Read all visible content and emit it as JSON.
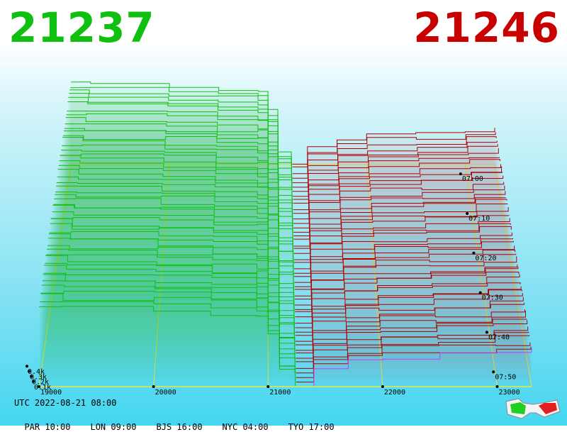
{
  "header": {
    "bid_price": "21237",
    "ask_price": "21246"
  },
  "footer": {
    "utc": "UTC 2022-08-21 08:00",
    "cities": [
      "PAR 10:00",
      "LON 09:00",
      "BJS 16:00",
      "NYC 04:00",
      "TYO 17:00"
    ]
  },
  "chart_data": {
    "type": "area",
    "title": "",
    "x_ticks": [
      "19000",
      "20000",
      "21000",
      "22000",
      "23000"
    ],
    "x_range": [
      19000,
      23300
    ],
    "y_ticks": [
      "0.1k",
      "0.2k",
      "0.3k",
      "0.4k"
    ],
    "time_ticks": [
      "07:00",
      "07:10",
      "07:20",
      "07:30",
      "07:40",
      "07:50"
    ],
    "time_range_minutes": [
      0,
      60
    ],
    "series": [
      {
        "name": "",
        "side": "bid",
        "color": "#10c010",
        "levels": [
          {
            "price": 19000,
            "depth": 0.45
          },
          {
            "price": 19200,
            "depth": 0.44
          },
          {
            "price": 20000,
            "depth": 0.43
          },
          {
            "price": 20500,
            "depth": 0.41
          },
          {
            "price": 20900,
            "depth": 0.4
          },
          {
            "price": 21000,
            "depth": 0.3
          },
          {
            "price": 21100,
            "depth": 0.08
          },
          {
            "price": 21237,
            "depth": 0.0
          }
        ]
      },
      {
        "name": "",
        "side": "ask",
        "color": "#b00000",
        "levels": [
          {
            "price": 21246,
            "depth": 0.0
          },
          {
            "price": 21400,
            "depth": 0.1
          },
          {
            "price": 21700,
            "depth": 0.14
          },
          {
            "price": 22000,
            "depth": 0.16
          },
          {
            "price": 22500,
            "depth": 0.17
          },
          {
            "price": 23000,
            "depth": 0.19
          },
          {
            "price": 23300,
            "depth": 0.2
          }
        ]
      }
    ],
    "grid": true,
    "legend": "none"
  },
  "colors": {
    "bid": "#10c010",
    "ask": "#c80000",
    "grid": "#e8e840",
    "latest": "#c040ff"
  },
  "icons": {
    "glasses": "3d-glasses-icon"
  }
}
